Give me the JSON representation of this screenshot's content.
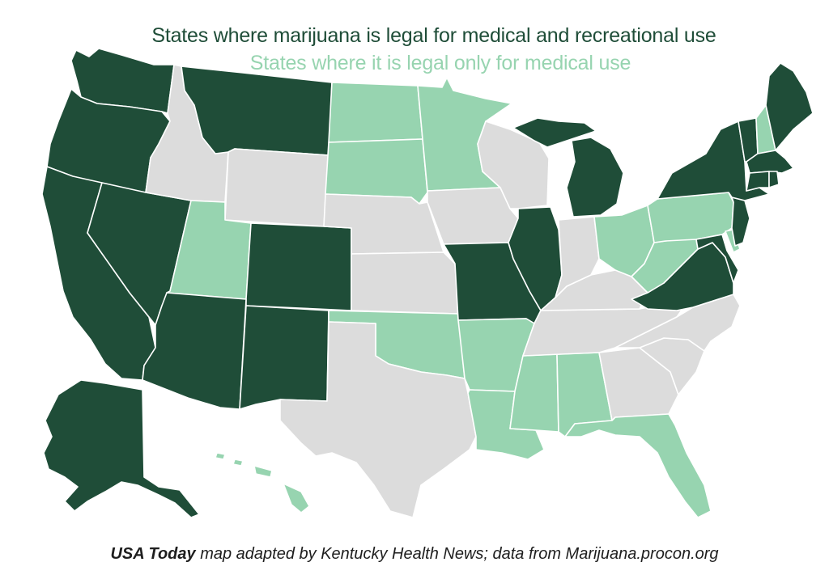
{
  "colors": {
    "recreational_and_medical": "#1f4d38",
    "medical_only": "#97d4b0",
    "not_legal": "#dcdcdc",
    "border": "#ffffff",
    "caption_text": "#1e1e1e"
  },
  "legend": {
    "recreational_and_medical": "States where marijuana is legal for medical and recreational use",
    "medical_only": "States where it is legal only for medical use"
  },
  "caption": {
    "source_bold": "USA Today",
    "rest": " map adapted by Kentucky Health News; data from Marijuana.procon.org"
  },
  "states": {
    "recreational_and_medical": [
      "WA",
      "OR",
      "CA",
      "NV",
      "MT",
      "CO",
      "AZ",
      "NM",
      "AK",
      "MI",
      "IL",
      "MO",
      "VA",
      "NY",
      "VT",
      "ME",
      "MA",
      "CT",
      "RI",
      "NJ",
      "MD"
    ],
    "medical_only": [
      "UT",
      "ND",
      "SD",
      "MN",
      "OK",
      "AR",
      "LA",
      "MS",
      "AL",
      "FL",
      "OH",
      "WV",
      "PA",
      "NH",
      "DE",
      "HI"
    ],
    "not_legal": [
      "ID",
      "WY",
      "NE",
      "KS",
      "TX",
      "IA",
      "WI",
      "IN",
      "KY",
      "TN",
      "GA",
      "SC",
      "NC"
    ]
  }
}
